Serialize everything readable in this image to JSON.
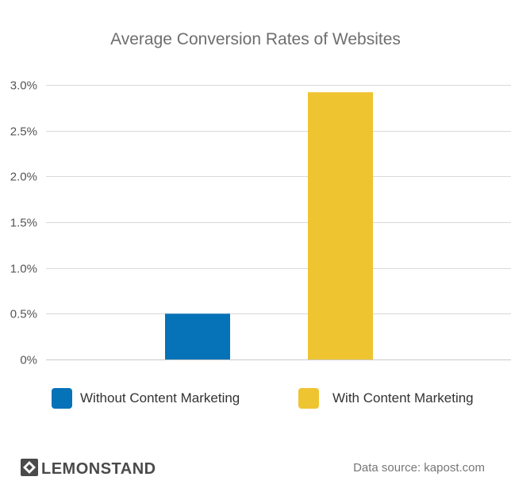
{
  "chart_data": {
    "type": "bar",
    "title": "Average Conversion Rates of Websites",
    "categories": [
      "Without Content Marketing",
      "With Content Marketing"
    ],
    "values": [
      0.5,
      2.92
    ],
    "unit": "%",
    "ylim": [
      0,
      3.0
    ],
    "yticks": [
      {
        "value": 0,
        "label": "0%"
      },
      {
        "value": 0.5,
        "label": "0.5%"
      },
      {
        "value": 1.0,
        "label": "1.0%"
      },
      {
        "value": 1.5,
        "label": "1.5%"
      },
      {
        "value": 2.0,
        "label": "2.0%"
      },
      {
        "value": 2.5,
        "label": "2.5%"
      },
      {
        "value": 3.0,
        "label": "3.0%"
      }
    ],
    "grid": true,
    "legend_position": "bottom",
    "legend": [
      {
        "label": "Without Content Marketing",
        "color": "#0672b8"
      },
      {
        "label": "With Content Marketing",
        "color": "#efc431"
      }
    ],
    "colors": [
      "#0672b8",
      "#efc431"
    ]
  },
  "footer": {
    "logo_icon": "lemonstand-logo-icon",
    "logo_text": "LEMONSTAND",
    "source": "Data source: kapost.com"
  }
}
